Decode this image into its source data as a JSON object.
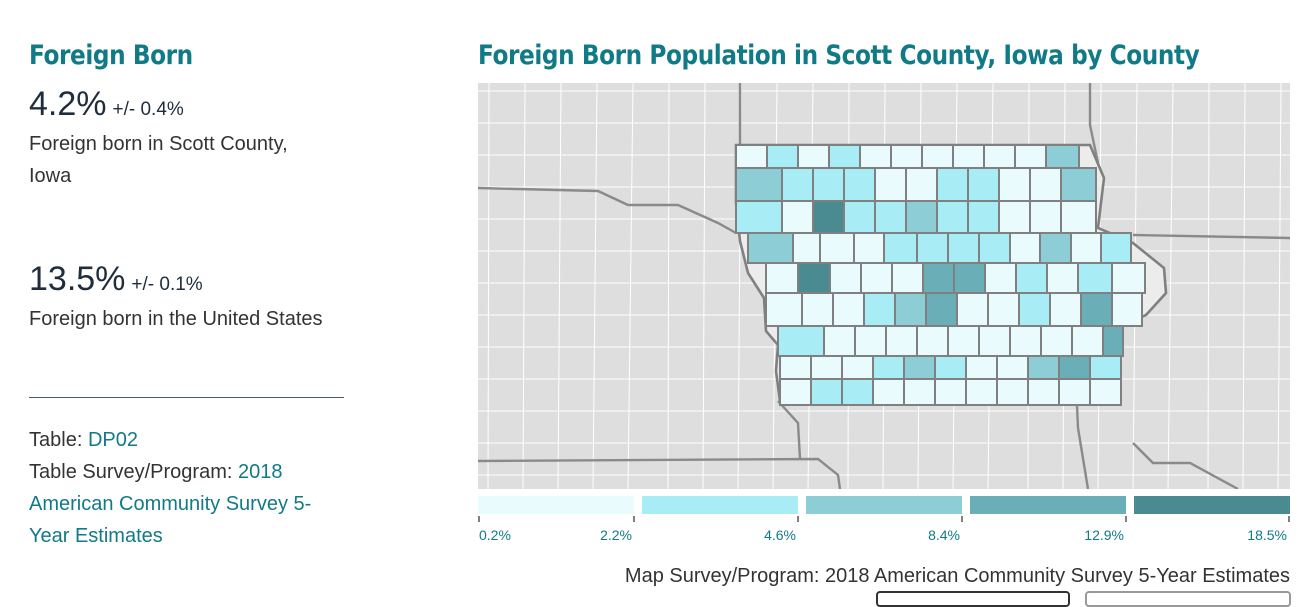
{
  "left": {
    "title": "Foreign Born",
    "stat1": {
      "value": "4.2%",
      "moe": "+/- 0.4%",
      "desc": "Foreign born in Scott County, Iowa"
    },
    "stat2": {
      "value": "13.5%",
      "moe": "+/- 0.1%",
      "desc": "Foreign born in the United States"
    },
    "table_label": "Table: ",
    "table_id": "DP02",
    "survey_label": "Table Survey/Program: ",
    "survey_value": "2018 American Community Survey 5-Year Estimates"
  },
  "map": {
    "title": "Foreign Born Population in Scott County, Iowa by County",
    "survey": "Map Survey/Program: 2018 American Community Survey 5-Year Estimates",
    "legend_ticks": [
      "0.2%",
      "2.2%",
      "4.6%",
      "8.4%",
      "12.9%",
      "18.5%"
    ],
    "legend_colors": [
      "#e9fbfd",
      "#a8ecf6",
      "#8ccdd6",
      "#6aafb7",
      "#4a8b92"
    ],
    "outline_color": "#808080",
    "background_fill": "#dedede"
  }
}
